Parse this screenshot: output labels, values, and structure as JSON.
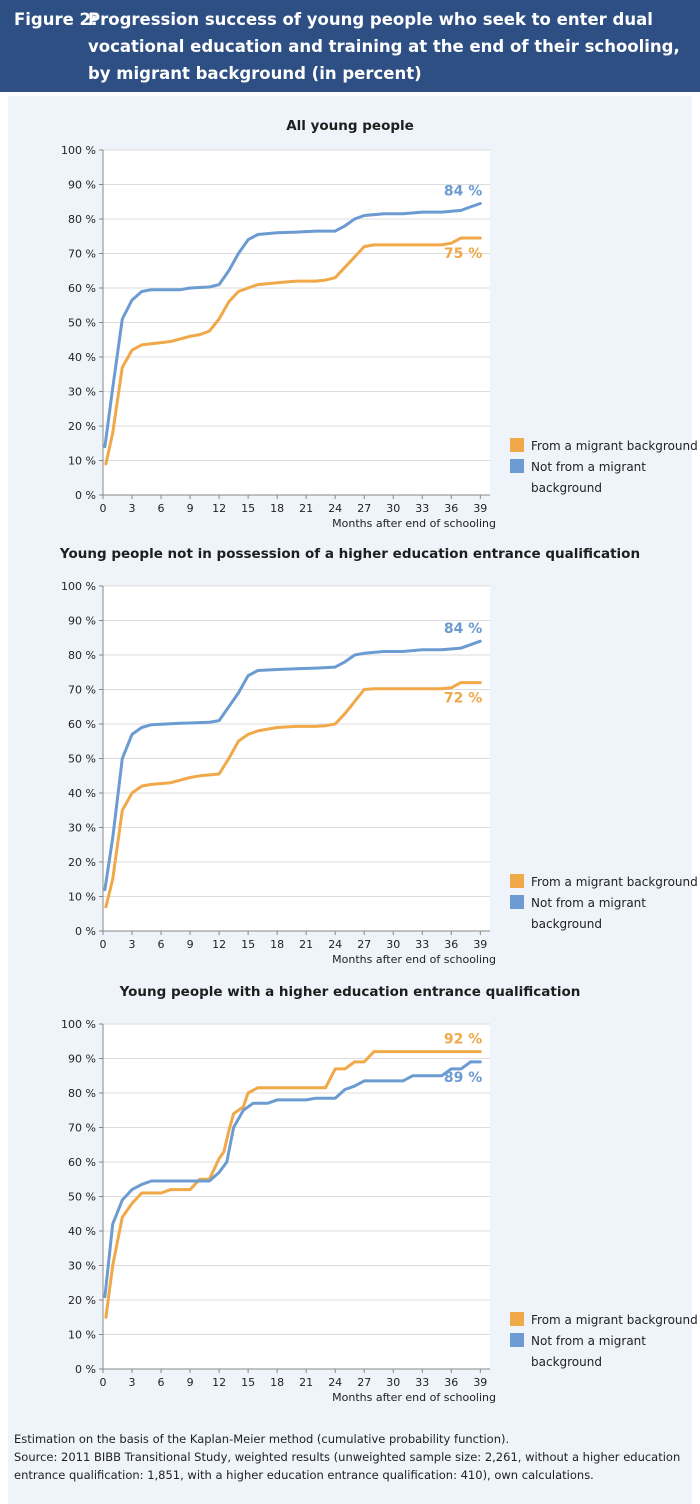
{
  "header": {
    "label": "Figure 2:",
    "title": "Progression success of young people who seek to enter dual vocational education and training at the end of their schooling, by migrant background (in percent)"
  },
  "colors": {
    "migrant": "#f0a848",
    "nonmigrant": "#6b9bd1",
    "header_bg": "#2e4f84",
    "panel_bg": "#eef4f9"
  },
  "chart_data": [
    {
      "type": "line",
      "title": "All young people",
      "xlabel": "Months after end of schooling",
      "ylabel": "",
      "xlim": [
        0,
        40
      ],
      "ylim": [
        0,
        100
      ],
      "xticks": [
        0,
        3,
        6,
        9,
        12,
        15,
        18,
        21,
        24,
        27,
        30,
        33,
        36,
        39
      ],
      "yticks": [
        "0 %",
        "10 %",
        "20 %",
        "30 %",
        "40 %",
        "50 %",
        "60 %",
        "70 %",
        "80 %",
        "90 %",
        "100 %"
      ],
      "legend_position": "right",
      "series": [
        {
          "name": "From a migrant background",
          "color_key": "migrant",
          "end_label": "75 %",
          "points": [
            [
              0.3,
              9
            ],
            [
              1,
              18
            ],
            [
              2,
              37
            ],
            [
              3,
              42
            ],
            [
              4,
              43.5
            ],
            [
              7,
              44.5
            ],
            [
              9,
              46
            ],
            [
              10,
              46.5
            ],
            [
              11,
              47.5
            ],
            [
              12,
              51
            ],
            [
              13,
              56
            ],
            [
              14,
              59
            ],
            [
              15,
              60
            ],
            [
              16,
              61
            ],
            [
              18,
              61.5
            ],
            [
              20,
              62
            ],
            [
              22,
              62
            ],
            [
              23,
              62.3
            ],
            [
              24,
              63
            ],
            [
              25,
              66
            ],
            [
              26,
              69
            ],
            [
              27,
              72
            ],
            [
              28,
              72.5
            ],
            [
              30,
              72.5
            ],
            [
              35,
              72.5
            ],
            [
              36,
              73
            ],
            [
              37,
              74.5
            ],
            [
              39,
              74.5
            ]
          ]
        },
        {
          "name": "Not from a migrant background",
          "color_key": "nonmigrant",
          "end_label": "84 %",
          "points": [
            [
              0.2,
              14
            ],
            [
              1,
              31
            ],
            [
              2,
              51
            ],
            [
              3,
              56.5
            ],
            [
              4,
              59
            ],
            [
              5,
              59.5
            ],
            [
              8,
              59.5
            ],
            [
              9,
              60
            ],
            [
              11,
              60.3
            ],
            [
              12,
              61
            ],
            [
              13,
              65
            ],
            [
              14,
              70
            ],
            [
              15,
              74
            ],
            [
              16,
              75.5
            ],
            [
              18,
              76
            ],
            [
              20,
              76.2
            ],
            [
              22,
              76.5
            ],
            [
              24,
              76.5
            ],
            [
              25,
              78
            ],
            [
              26,
              80
            ],
            [
              27,
              81
            ],
            [
              29,
              81.5
            ],
            [
              31,
              81.5
            ],
            [
              33,
              82
            ],
            [
              35,
              82
            ],
            [
              37,
              82.5
            ],
            [
              38,
              83.5
            ],
            [
              39,
              84.5
            ]
          ]
        }
      ]
    },
    {
      "type": "line",
      "title": "Young people not in possession of a higher education entrance qualification",
      "xlabel": "Months after end of schooling",
      "ylabel": "",
      "xlim": [
        0,
        40
      ],
      "ylim": [
        0,
        100
      ],
      "xticks": [
        0,
        3,
        6,
        9,
        12,
        15,
        18,
        21,
        24,
        27,
        30,
        33,
        36,
        39
      ],
      "yticks": [
        "0 %",
        "10 %",
        "20 %",
        "30 %",
        "40 %",
        "50 %",
        "60 %",
        "70 %",
        "80 %",
        "90 %",
        "100 %"
      ],
      "legend_position": "right",
      "series": [
        {
          "name": "From a migrant background",
          "color_key": "migrant",
          "end_label": "72 %",
          "points": [
            [
              0.3,
              7
            ],
            [
              1,
              15
            ],
            [
              2,
              35
            ],
            [
              3,
              40
            ],
            [
              4,
              42
            ],
            [
              5,
              42.5
            ],
            [
              7,
              43
            ],
            [
              9,
              44.5
            ],
            [
              10,
              45
            ],
            [
              12,
              45.5
            ],
            [
              13,
              50
            ],
            [
              14,
              55
            ],
            [
              15,
              57
            ],
            [
              16,
              58
            ],
            [
              18,
              59
            ],
            [
              20,
              59.3
            ],
            [
              22,
              59.3
            ],
            [
              23,
              59.5
            ],
            [
              24,
              60
            ],
            [
              25,
              63
            ],
            [
              26,
              66.5
            ],
            [
              27,
              70
            ],
            [
              28,
              70.2
            ],
            [
              30,
              70.2
            ],
            [
              35,
              70.2
            ],
            [
              36,
              70.5
            ],
            [
              37,
              72
            ],
            [
              39,
              72
            ]
          ]
        },
        {
          "name": "Not from a migrant background",
          "color_key": "nonmigrant",
          "end_label": "84 %",
          "points": [
            [
              0.2,
              12
            ],
            [
              1,
              27
            ],
            [
              2,
              50
            ],
            [
              3,
              57
            ],
            [
              4,
              59
            ],
            [
              5,
              59.8
            ],
            [
              8,
              60.2
            ],
            [
              9,
              60.3
            ],
            [
              11,
              60.5
            ],
            [
              12,
              61
            ],
            [
              13,
              65
            ],
            [
              14,
              69
            ],
            [
              15,
              74
            ],
            [
              16,
              75.5
            ],
            [
              18,
              75.8
            ],
            [
              20,
              76
            ],
            [
              22,
              76.2
            ],
            [
              24,
              76.5
            ],
            [
              25,
              78
            ],
            [
              26,
              80
            ],
            [
              27,
              80.5
            ],
            [
              29,
              81
            ],
            [
              31,
              81
            ],
            [
              33,
              81.5
            ],
            [
              35,
              81.5
            ],
            [
              37,
              82
            ],
            [
              38,
              83
            ],
            [
              39,
              84
            ]
          ]
        }
      ]
    },
    {
      "type": "line",
      "title": "Young people with a higher education entrance qualification",
      "xlabel": "Months after end of schooling",
      "ylabel": "",
      "xlim": [
        0,
        40
      ],
      "ylim": [
        0,
        100
      ],
      "xticks": [
        0,
        3,
        6,
        9,
        12,
        15,
        18,
        21,
        24,
        27,
        30,
        33,
        36,
        39
      ],
      "yticks": [
        "0 %",
        "10 %",
        "20 %",
        "30 %",
        "40 %",
        "50 %",
        "60 %",
        "70 %",
        "80 %",
        "90 %",
        "100 %"
      ],
      "legend_position": "right",
      "series": [
        {
          "name": "From a migrant background",
          "color_key": "migrant",
          "end_label": "92 %",
          "points": [
            [
              0.3,
              15
            ],
            [
              1,
              30
            ],
            [
              2,
              44
            ],
            [
              3,
              48
            ],
            [
              4,
              51
            ],
            [
              6,
              51
            ],
            [
              7,
              52
            ],
            [
              8,
              52
            ],
            [
              9,
              52
            ],
            [
              10,
              55
            ],
            [
              11,
              55
            ],
            [
              12,
              61
            ],
            [
              12.5,
              63
            ],
            [
              13,
              69
            ],
            [
              13.5,
              74
            ],
            [
              14.5,
              76
            ],
            [
              15,
              80
            ],
            [
              16,
              81.5
            ],
            [
              22,
              81.5
            ],
            [
              23,
              81.5
            ],
            [
              24,
              87
            ],
            [
              25,
              87
            ],
            [
              26,
              89
            ],
            [
              27,
              89
            ],
            [
              28,
              92
            ],
            [
              39,
              92
            ]
          ]
        },
        {
          "name": "Not from a migrant background",
          "color_key": "nonmigrant",
          "end_label": "89 %",
          "points": [
            [
              0.2,
              21
            ],
            [
              1,
              42
            ],
            [
              2,
              49
            ],
            [
              3,
              52
            ],
            [
              4,
              53.5
            ],
            [
              5,
              54.5
            ],
            [
              10,
              54.5
            ],
            [
              11,
              54.5
            ],
            [
              12,
              57
            ],
            [
              12.8,
              60
            ],
            [
              13.5,
              70
            ],
            [
              14.5,
              75
            ],
            [
              15.5,
              77
            ],
            [
              17,
              77
            ],
            [
              18,
              78
            ],
            [
              21,
              78
            ],
            [
              22,
              78.5
            ],
            [
              24,
              78.5
            ],
            [
              25,
              81
            ],
            [
              26,
              82
            ],
            [
              27,
              83.5
            ],
            [
              31,
              83.5
            ],
            [
              32,
              85
            ],
            [
              35,
              85
            ],
            [
              36,
              87
            ],
            [
              37,
              87
            ],
            [
              38,
              89
            ],
            [
              39,
              89
            ]
          ]
        }
      ]
    }
  ],
  "footer": {
    "line1": "Estimation on the basis of the Kaplan-Meier method (cumulative probability function).",
    "line2": "Source: 2011 BIBB Transitional Study, weighted results (unweighted sample size: 2,261, without a higher education entrance qualification: 1,851, with a higher education entrance qualification: 410), own calculations."
  }
}
